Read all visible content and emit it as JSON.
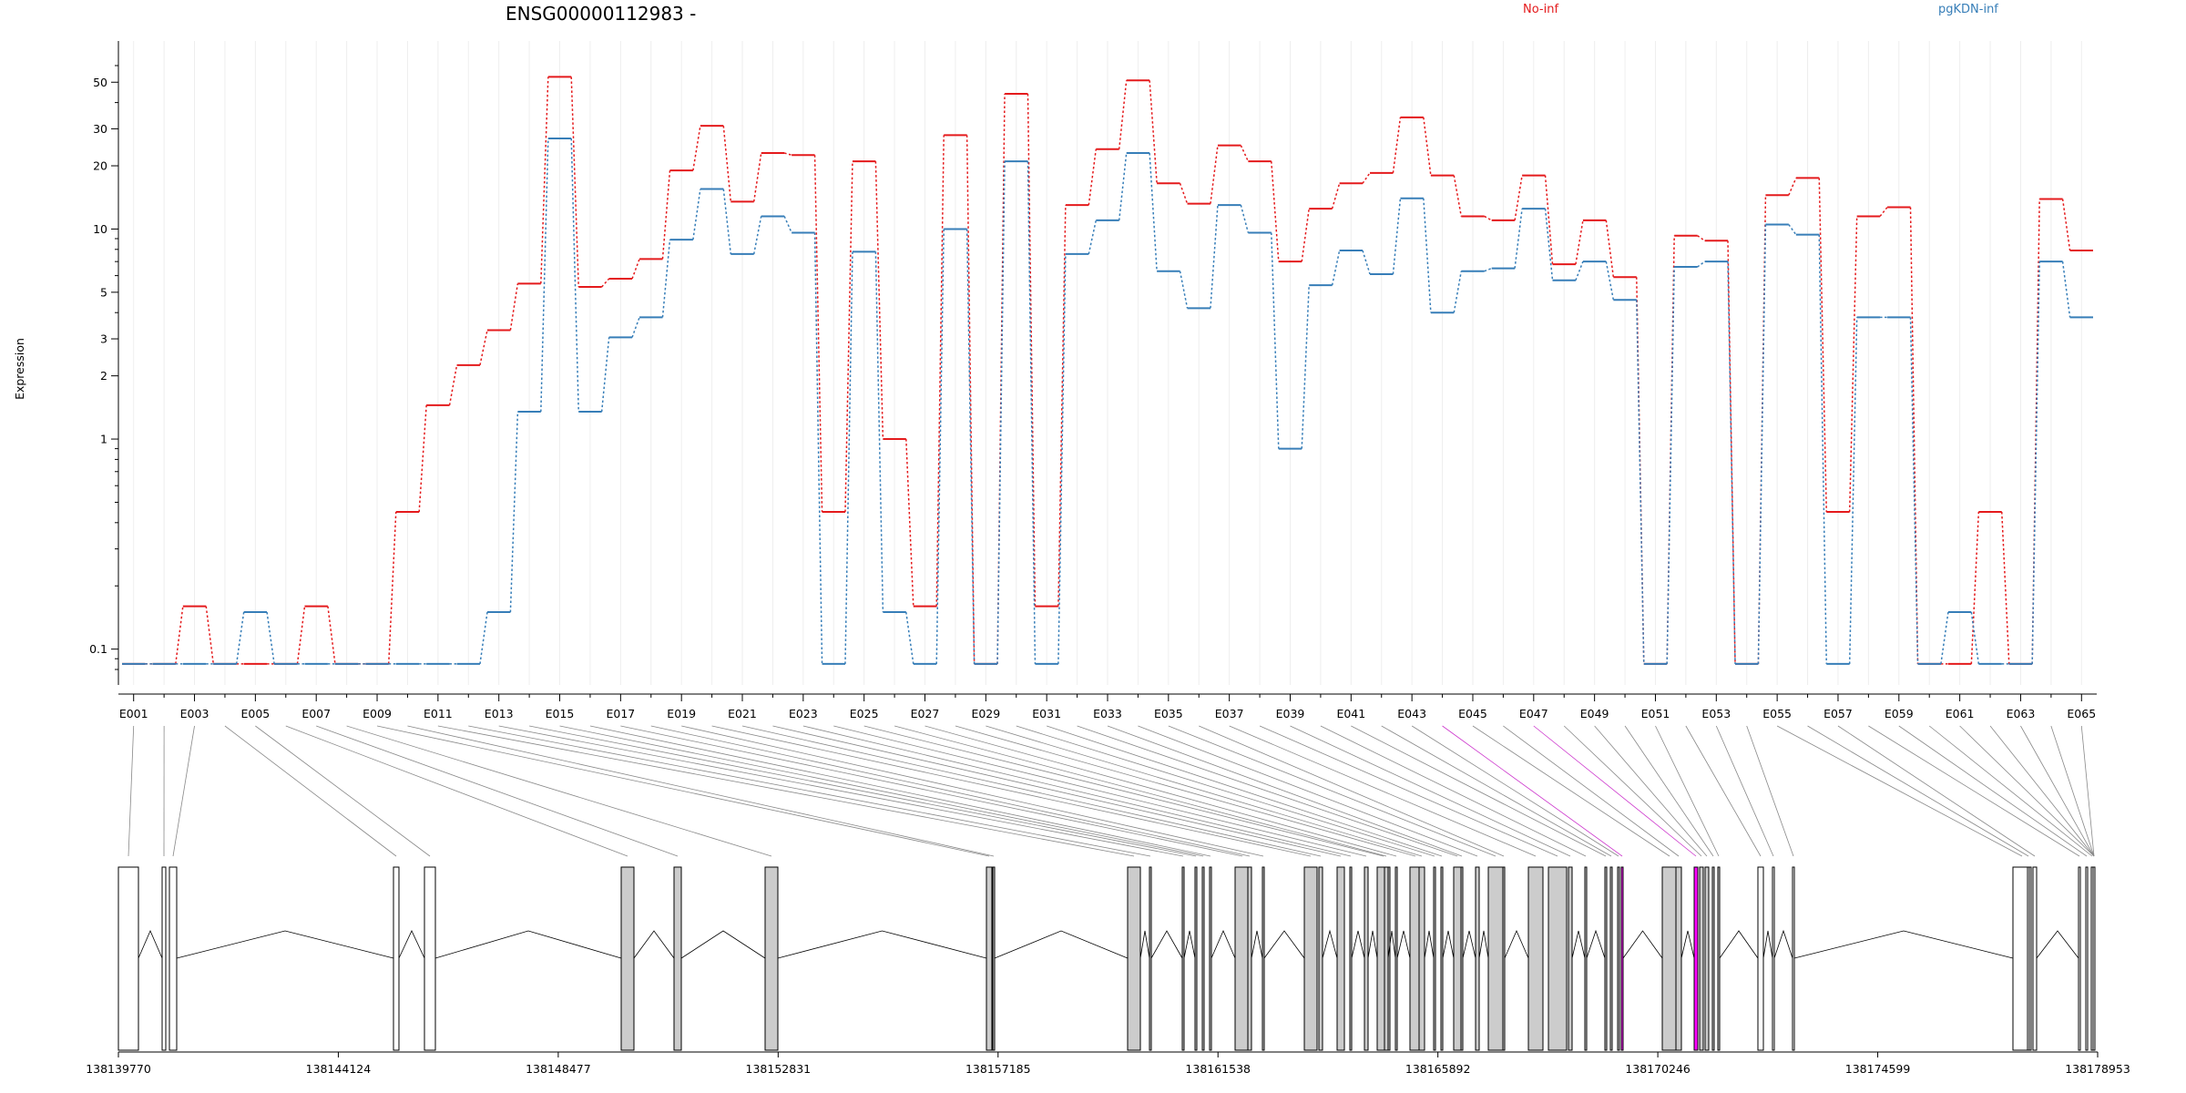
{
  "chart_data": {
    "type": "line",
    "title": "ENSG00000112983 -",
    "ylabel": "Expression",
    "yscale": "log",
    "ylim": [
      0.08,
      60
    ],
    "yticks": [
      {
        "v": 0.1,
        "label": "0.1"
      },
      {
        "v": 1,
        "label": "1"
      },
      {
        "v": 2,
        "label": "2"
      },
      {
        "v": 3,
        "label": "3"
      },
      {
        "v": 5,
        "label": "5"
      },
      {
        "v": 10,
        "label": "10"
      },
      {
        "v": 20,
        "label": "20"
      },
      {
        "v": 30,
        "label": "30"
      },
      {
        "v": 50,
        "label": "50"
      }
    ],
    "categories": [
      "E001",
      "E002",
      "E003",
      "E004",
      "E005",
      "E006",
      "E007",
      "E008",
      "E009",
      "E010",
      "E011",
      "E012",
      "E013",
      "E014",
      "E015",
      "E016",
      "E017",
      "E018",
      "E019",
      "E020",
      "E021",
      "E022",
      "E023",
      "E024",
      "E025",
      "E026",
      "E027",
      "E028",
      "E029",
      "E030",
      "E031",
      "E032",
      "E033",
      "E034",
      "E035",
      "E036",
      "E037",
      "E038",
      "E039",
      "E040",
      "E041",
      "E042",
      "E043",
      "E044",
      "E045",
      "E046",
      "E047",
      "E048",
      "E049",
      "E050",
      "E051",
      "E052",
      "E053",
      "E054",
      "E055",
      "E056",
      "E057",
      "E058",
      "E059",
      "E060",
      "E061",
      "E062",
      "E063",
      "E064",
      "E065"
    ],
    "xtick_labels": [
      "E001",
      "E003",
      "E005",
      "E007",
      "E009",
      "E011",
      "E013",
      "E015",
      "E017",
      "E019",
      "E021",
      "E023",
      "E025",
      "E027",
      "E029",
      "E031",
      "E033",
      "E035",
      "E037",
      "E039",
      "E041",
      "E043",
      "E045",
      "E047",
      "E049",
      "E051",
      "E053",
      "E055",
      "E057",
      "E059",
      "E061",
      "E063",
      "E065"
    ],
    "series": [
      {
        "name": "No-inf",
        "color": "#e41a1c",
        "values": [
          0.085,
          0.085,
          0.16,
          0.085,
          0.085,
          0.085,
          0.16,
          0.085,
          0.085,
          0.45,
          1.45,
          2.25,
          3.3,
          5.5,
          53,
          5.3,
          5.8,
          7.2,
          19,
          31,
          13.5,
          23,
          22.5,
          0.45,
          21,
          1.0,
          0.16,
          28,
          0.085,
          44,
          0.16,
          13,
          24,
          51,
          16.5,
          13.2,
          25,
          21,
          7,
          12.5,
          16.5,
          18.5,
          34,
          18,
          11.5,
          11,
          18,
          6.8,
          11,
          5.9,
          0.085,
          9.3,
          8.8,
          0.085,
          14.5,
          17.5,
          0.45,
          11.5,
          12.7,
          0.085,
          0.085,
          0.45,
          0.085,
          13.9,
          7.9
        ]
      },
      {
        "name": "pgKDN-inf",
        "color": "#377eb8",
        "values": [
          0.085,
          0.085,
          0.085,
          0.085,
          0.15,
          0.085,
          0.085,
          0.085,
          0.085,
          0.085,
          0.085,
          0.085,
          0.15,
          1.35,
          27,
          1.35,
          3.05,
          3.8,
          8.9,
          15.5,
          7.6,
          11.5,
          9.6,
          0.085,
          7.8,
          0.15,
          0.085,
          10,
          0.085,
          21,
          0.085,
          7.6,
          11,
          23,
          6.3,
          4.2,
          13,
          9.6,
          0.9,
          5.4,
          7.9,
          6.1,
          14,
          4,
          6.3,
          6.5,
          12.5,
          5.7,
          7,
          4.6,
          0.085,
          6.6,
          7,
          0.085,
          10.5,
          9.4,
          0.085,
          3.8,
          3.8,
          0.085,
          0.15,
          0.085,
          0.085,
          7,
          3.8
        ]
      }
    ],
    "genomic_axis": {
      "ticks": [
        "138139770",
        "138144124",
        "138148477",
        "138152831",
        "138157185",
        "138161538",
        "138165892",
        "138170246",
        "138174599",
        "138178953"
      ],
      "start": 138139770,
      "end": 138178953
    },
    "exon_model": {
      "fill_gray": "#cccccc",
      "fill_magenta": "#ff00ff",
      "fill_white": "#ffffff",
      "highlighted_exons": [
        "E044",
        "E046"
      ]
    }
  }
}
